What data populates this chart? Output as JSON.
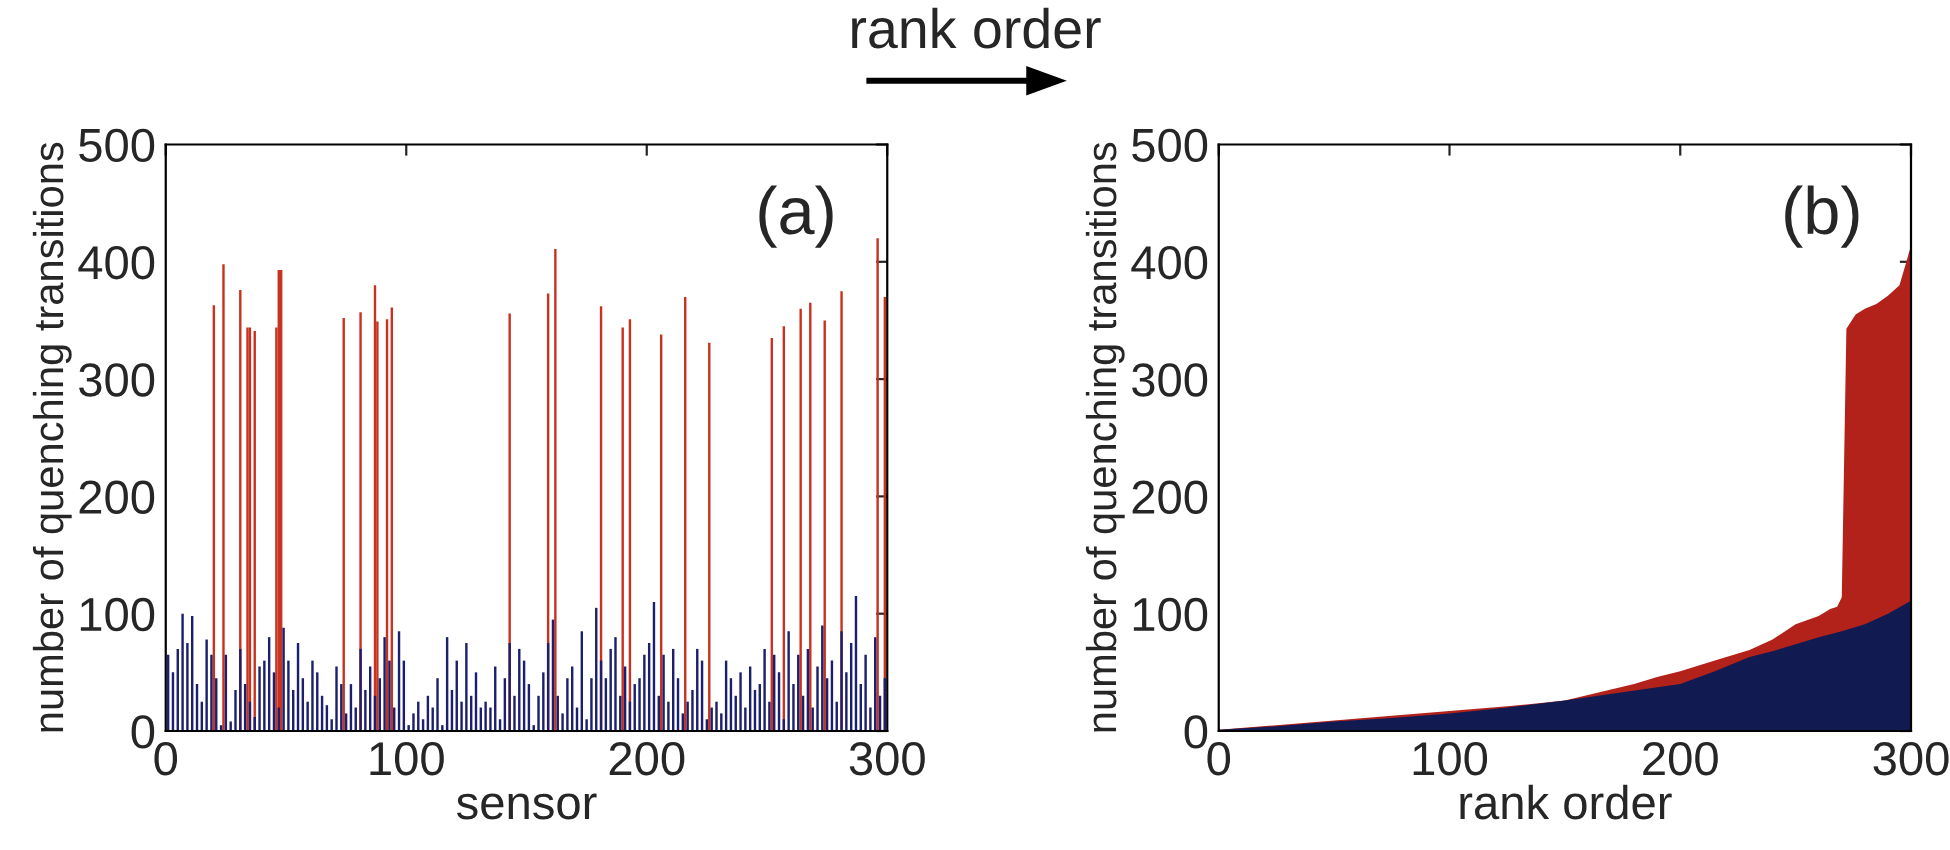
{
  "chart_data": [
    {
      "type": "bar",
      "xlabel": "sensor",
      "ylabel": "number of quenching transitions",
      "xlim": [
        0,
        300
      ],
      "ylim": [
        0,
        500
      ],
      "xticks": [
        0,
        100,
        200,
        300
      ],
      "yticks": [
        0,
        100,
        200,
        300,
        400,
        500
      ],
      "grid": false,
      "legend": false,
      "annotations": [
        "(a)"
      ],
      "series": [
        {
          "color": "#c8321e",
          "x": [
            20,
            24,
            31,
            34,
            35,
            37,
            46,
            47,
            48,
            74,
            81,
            87,
            88,
            92,
            94,
            143,
            159,
            162,
            181,
            190,
            193,
            206,
            216,
            226,
            252,
            257,
            264,
            268,
            274,
            281,
            296,
            299
          ],
          "values": [
            363,
            398,
            376,
            344,
            344,
            341,
            344,
            393,
            393,
            352,
            357,
            380,
            349,
            351,
            361,
            356,
            373,
            411,
            362,
            344,
            351,
            338,
            370,
            331,
            335,
            345,
            360,
            365,
            350,
            375,
            420,
            370
          ]
        },
        {
          "color": "#1a1f6e",
          "x": [
            1,
            3,
            5,
            7,
            9,
            11,
            13,
            15,
            17,
            19,
            21,
            23,
            25,
            27,
            29,
            31,
            33,
            35,
            37,
            39,
            41,
            43,
            45,
            47,
            49,
            51,
            53,
            55,
            57,
            59,
            61,
            63,
            65,
            67,
            69,
            71,
            73,
            75,
            77,
            79,
            81,
            83,
            85,
            87,
            89,
            91,
            93,
            95,
            97,
            99,
            101,
            103,
            105,
            107,
            109,
            111,
            113,
            115,
            117,
            119,
            121,
            123,
            125,
            127,
            129,
            131,
            133,
            135,
            137,
            139,
            141,
            143,
            145,
            147,
            149,
            151,
            153,
            155,
            157,
            159,
            161,
            163,
            165,
            167,
            169,
            171,
            173,
            175,
            177,
            179,
            181,
            183,
            185,
            187,
            189,
            191,
            193,
            195,
            197,
            199,
            201,
            203,
            205,
            207,
            209,
            211,
            213,
            215,
            217,
            219,
            221,
            223,
            225,
            227,
            229,
            231,
            233,
            235,
            237,
            239,
            241,
            243,
            245,
            247,
            249,
            251,
            253,
            255,
            257,
            259,
            261,
            263,
            265,
            267,
            269,
            271,
            273,
            275,
            277,
            279,
            281,
            283,
            285,
            287,
            289,
            291,
            293,
            295,
            297,
            299
          ],
          "values": [
            65,
            50,
            70,
            100,
            75,
            98,
            40,
            25,
            78,
            65,
            45,
            5,
            65,
            8,
            35,
            70,
            40,
            25,
            12,
            55,
            60,
            80,
            50,
            20,
            88,
            60,
            35,
            75,
            45,
            25,
            60,
            50,
            30,
            22,
            10,
            55,
            40,
            15,
            40,
            20,
            70,
            35,
            55,
            30,
            45,
            80,
            60,
            20,
            85,
            60,
            5,
            15,
            25,
            10,
            30,
            20,
            45,
            5,
            80,
            35,
            60,
            25,
            75,
            30,
            50,
            20,
            25,
            20,
            55,
            10,
            45,
            75,
            30,
            70,
            60,
            40,
            5,
            30,
            50,
            75,
            95,
            30,
            15,
            45,
            55,
            20,
            85,
            10,
            45,
            105,
            60,
            45,
            70,
            80,
            30,
            55,
            25,
            40,
            45,
            65,
            75,
            110,
            30,
            65,
            25,
            70,
            45,
            15,
            25,
            35,
            70,
            60,
            10,
            20,
            25,
            15,
            60,
            45,
            30,
            50,
            20,
            55,
            35,
            40,
            70,
            25,
            65,
            50,
            10,
            85,
            40,
            65,
            30,
            70,
            20,
            55,
            90,
            45,
            60,
            25,
            85,
            50,
            75,
            115,
            40,
            65,
            20,
            80,
            30,
            45
          ]
        }
      ]
    },
    {
      "type": "area",
      "xlabel": "rank order",
      "ylabel": "number of quenching transitions",
      "xlim": [
        0,
        300
      ],
      "ylim": [
        0,
        500
      ],
      "xticks": [
        0,
        100,
        200,
        300
      ],
      "yticks": [
        0,
        100,
        200,
        300,
        400,
        500
      ],
      "grid": false,
      "legend": false,
      "annotations": [
        "(b)",
        "rank order"
      ],
      "series": [
        {
          "color": "#b3221a",
          "x": [
            0,
            25,
            50,
            75,
            100,
            125,
            150,
            165,
            180,
            190,
            200,
            215,
            230,
            240,
            250,
            260,
            265,
            268,
            270,
            272,
            276,
            280,
            285,
            290,
            295,
            298,
            300
          ],
          "values": [
            1,
            5,
            9,
            13,
            17,
            21,
            26,
            33,
            40,
            46,
            51,
            60,
            69,
            78,
            91,
            98,
            104,
            106,
            114,
            343,
            355,
            360,
            364,
            371,
            380,
            400,
            414
          ]
        },
        {
          "color": "#121a52",
          "x": [
            0,
            25,
            50,
            75,
            100,
            125,
            150,
            175,
            200,
            215,
            230,
            240,
            250,
            260,
            270,
            280,
            290,
            300
          ],
          "values": [
            1,
            4,
            8,
            11,
            15,
            20,
            26,
            33,
            40,
            51,
            63,
            68,
            74,
            80,
            85,
            91,
            100,
            111
          ]
        }
      ]
    }
  ]
}
